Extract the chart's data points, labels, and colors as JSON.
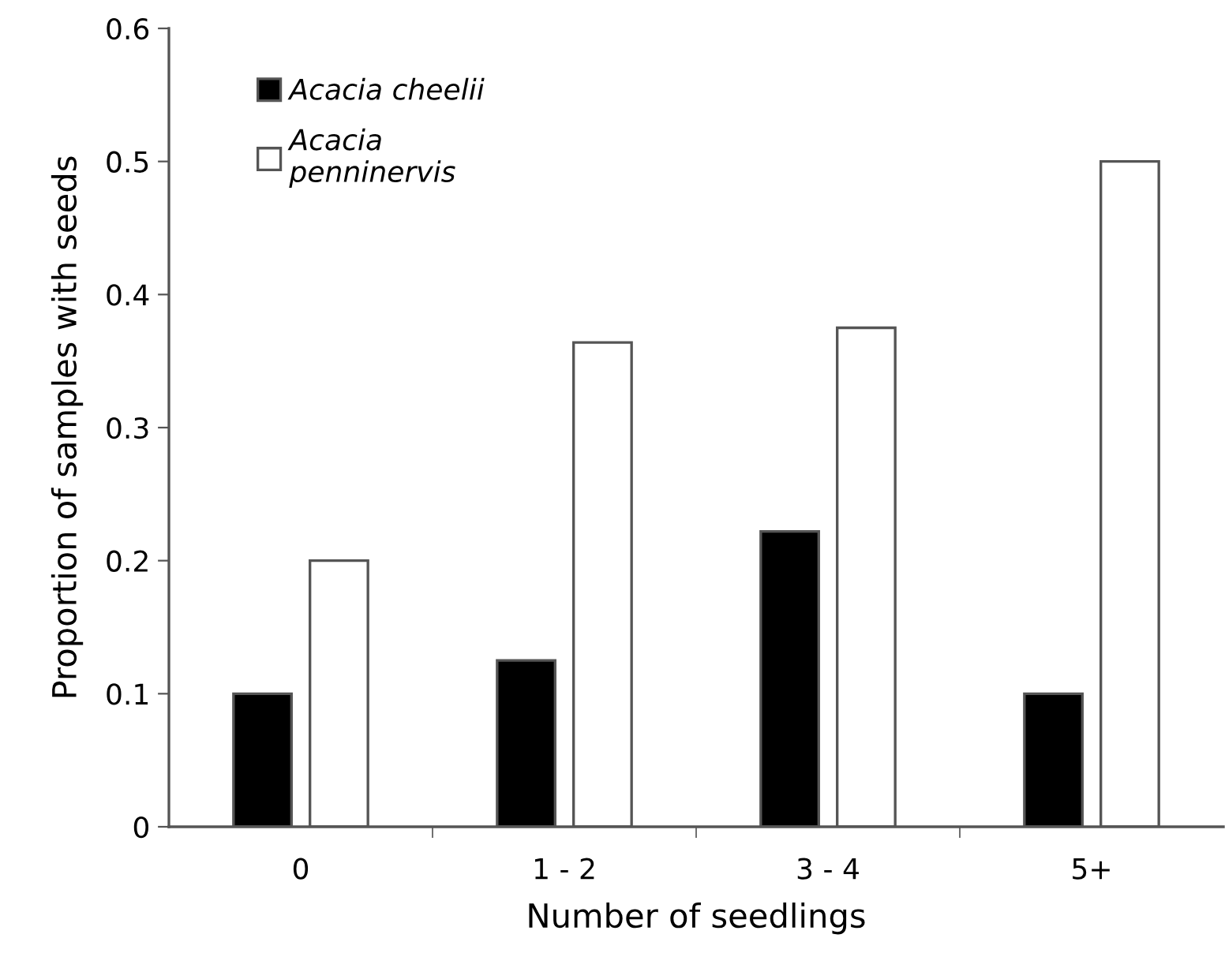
{
  "chart_data": {
    "type": "bar",
    "xlabel": "Number of seedlings",
    "ylabel": "Proportion of samples with seeds",
    "categories": [
      "0",
      "1 - 2",
      "3 - 4",
      "5+"
    ],
    "series": [
      {
        "name": "Acacia cheelii",
        "color": "#000000",
        "values": [
          0.1,
          0.125,
          0.222,
          0.1
        ]
      },
      {
        "name": "Acacia\npenninervis",
        "color": "#ffffff",
        "values": [
          0.2,
          0.364,
          0.375,
          0.5
        ]
      }
    ],
    "ylim": [
      0,
      0.6
    ],
    "yticks": [
      0,
      0.1,
      0.2,
      0.3,
      0.4,
      0.5,
      0.6
    ],
    "grid": false,
    "legend": "top left"
  }
}
